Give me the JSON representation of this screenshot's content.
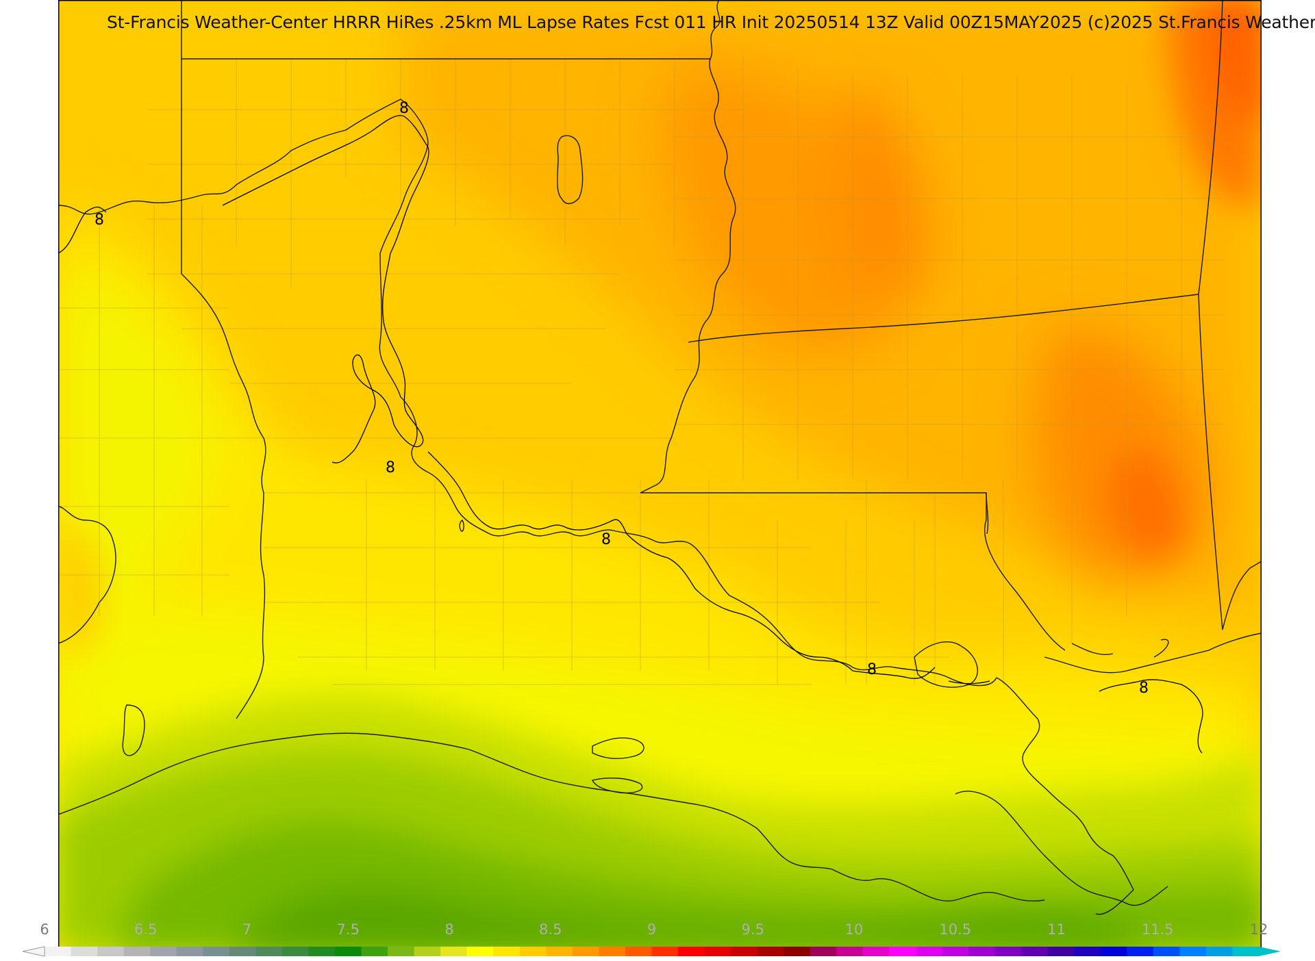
{
  "title": "St-Francis Weather-Center HRRR HiRes .25km ML Lapse Rates  Fcst 011 HR Init 20250514 13Z  Valid 00Z15MAY2025    (c)2025 St.Francis Weather",
  "colors": {
    "frame": "#000000",
    "border": "#1a1a1a",
    "county": "#c29a2c",
    "contour": "#000000"
  },
  "contour_labels": [
    {
      "id": "8-a",
      "text": "8"
    },
    {
      "id": "8-b",
      "text": "8"
    },
    {
      "id": "8-c",
      "text": "8"
    },
    {
      "id": "8-d",
      "text": "8"
    },
    {
      "id": "8-e",
      "text": "8"
    },
    {
      "id": "8-f",
      "text": "8"
    }
  ],
  "colorbar": {
    "min": 6,
    "max": 12,
    "step": 0.25,
    "ticks": [
      {
        "value": 6,
        "label": "6"
      },
      {
        "value": 6.5,
        "label": "6.5"
      },
      {
        "value": 7,
        "label": "7"
      },
      {
        "value": 7.5,
        "label": "7.5"
      },
      {
        "value": 8,
        "label": "8"
      },
      {
        "value": 8.5,
        "label": "8.5"
      },
      {
        "value": 9,
        "label": "9"
      },
      {
        "value": 9.5,
        "label": "9.5"
      },
      {
        "value": 10,
        "label": "10"
      },
      {
        "value": 10.5,
        "label": "10.5"
      },
      {
        "value": 11,
        "label": "11"
      },
      {
        "value": 11.5,
        "label": "11.5"
      },
      {
        "value": 12,
        "label": "12"
      }
    ],
    "segment_colors": [
      "#f2f2f2",
      "#dcdcdc",
      "#c8c8c8",
      "#b4b4b4",
      "#a0a5ab",
      "#8c98a2",
      "#789090",
      "#658a78",
      "#4f8a5a",
      "#3a8a40",
      "#228a22",
      "#0c8a0c",
      "#40a010",
      "#7cb814",
      "#b4d01a",
      "#e6e61e",
      "#ffff00",
      "#ffe600",
      "#ffcc00",
      "#ffb400",
      "#ff9a00",
      "#ff7e00",
      "#ff5a00",
      "#ff3000",
      "#ff0000",
      "#e60000",
      "#c80000",
      "#aa0000",
      "#8c0000",
      "#a0005a",
      "#c80096",
      "#e600c8",
      "#ff00ff",
      "#e000f0",
      "#c000e0",
      "#a000d0",
      "#8000c0",
      "#6000b0",
      "#4000a0",
      "#2000c0",
      "#0000d8",
      "#0020f0",
      "#0050f8",
      "#0080ff",
      "#00a0e0",
      "#00c0c8"
    ],
    "under_color": "#f6f6f6",
    "over_color": "#00c0c8"
  }
}
